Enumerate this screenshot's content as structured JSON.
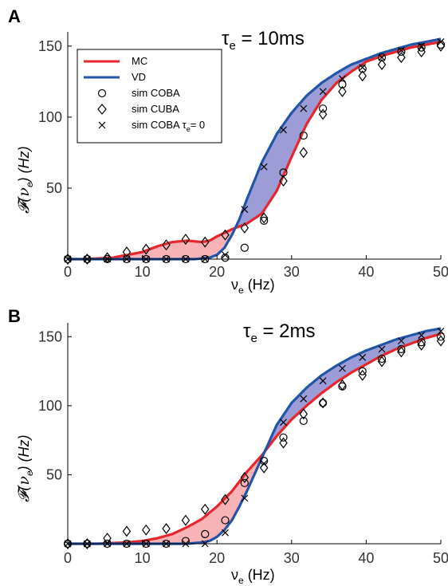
{
  "chart_data": [
    {
      "panel": "A",
      "type": "line",
      "title": "τe = 10ms",
      "title_main": "τ",
      "title_sub": "e",
      "title_rest": " = 10ms",
      "xlabel_main": "ν",
      "xlabel_sub": "e",
      "xlabel_rest": " (Hz)",
      "ylabel_f": "𝓕(ν",
      "ylabel_sub": "e",
      "ylabel_rest": ") (Hz)",
      "xlim": [
        0,
        50
      ],
      "ylim": [
        0,
        160
      ],
      "xticks": [
        0,
        10,
        20,
        30,
        40,
        50
      ],
      "yticks": [
        50,
        100,
        150
      ],
      "grid": false,
      "legend_placement": "top-left",
      "legend": {
        "mc": "MC",
        "vd": "VD",
        "coba": "sim COBA",
        "cuba": "sim CUBA",
        "coba0_main": "sim COBA τ",
        "coba0_sub": "e",
        "coba0_rest": "= 0"
      },
      "colors": {
        "mc": "#e8252b",
        "vd": "#2255a8",
        "mc_fill": "#e8252b",
        "vd_fill": "#3a3ab0"
      },
      "series": [
        {
          "name": "MC",
          "x": [
            0,
            2,
            4,
            6,
            8,
            10,
            12,
            14,
            16,
            18,
            19,
            20,
            22,
            24,
            26,
            28,
            30,
            32,
            34,
            36,
            38,
            40,
            42,
            44,
            46,
            48,
            50
          ],
          "y": [
            0,
            0,
            0.5,
            1,
            3,
            5,
            9,
            12,
            13,
            12,
            13,
            16,
            21,
            25,
            32,
            48,
            72,
            95,
            112,
            124,
            132,
            139,
            143,
            146,
            149,
            151,
            153
          ]
        },
        {
          "name": "VD",
          "x": [
            0,
            2,
            4,
            6,
            8,
            10,
            12,
            14,
            16,
            17,
            18,
            19,
            20,
            21,
            22,
            23,
            24,
            26,
            28,
            30,
            32,
            34,
            36,
            38,
            40,
            42,
            44,
            46,
            48,
            50
          ],
          "y": [
            0,
            0,
            0,
            0,
            0,
            0,
            0,
            0,
            0,
            0,
            0.5,
            1,
            3,
            8,
            17,
            28,
            42,
            68,
            88,
            103,
            115,
            124,
            131,
            137,
            141,
            145,
            148,
            151,
            153,
            155
          ]
        },
        {
          "name": "sim COBA",
          "marker": "circle",
          "x": [
            0,
            2.6,
            5.3,
            7.9,
            10.5,
            13.2,
            15.8,
            18.4,
            21.1,
            23.7,
            26.3,
            28.9,
            31.6,
            34.2,
            36.8,
            39.5,
            42.1,
            44.7,
            47.4,
            50
          ],
          "y": [
            0,
            0,
            0,
            0,
            0,
            0,
            0,
            0,
            1,
            8,
            27,
            61,
            87,
            106,
            123,
            134,
            142,
            146,
            149,
            151
          ]
        },
        {
          "name": "sim CUBA",
          "marker": "diamond",
          "x": [
            0,
            2.6,
            5.3,
            7.9,
            10.5,
            13.2,
            15.8,
            18.4,
            21.1,
            23.7,
            26.3,
            28.9,
            31.6,
            34.2,
            36.8,
            39.5,
            42.1,
            44.7,
            47.4,
            50
          ],
          "y": [
            0,
            0,
            1,
            5,
            7,
            10,
            14,
            12,
            17,
            22,
            29,
            55,
            75,
            102,
            118,
            129,
            137,
            142,
            146,
            150
          ]
        },
        {
          "name": "sim COBA τe = 0",
          "marker": "x",
          "x": [
            0,
            2.6,
            5.3,
            7.9,
            10.5,
            13.2,
            15.8,
            18.4,
            21.1,
            23.7,
            26.3,
            28.9,
            31.6,
            34.2,
            36.8,
            39.5,
            42.1,
            44.7,
            47.4,
            50
          ],
          "y": [
            0,
            0,
            0,
            0,
            0,
            0,
            0,
            0,
            3,
            35,
            65,
            91,
            106,
            118,
            127,
            135,
            142,
            147,
            150,
            153
          ]
        }
      ]
    },
    {
      "panel": "B",
      "type": "line",
      "title": "τe = 2ms",
      "title_main": "τ",
      "title_sub": "e",
      "title_rest": " = 2ms",
      "xlabel_main": "ν",
      "xlabel_sub": "e",
      "xlabel_rest": " (Hz)",
      "ylabel_f": "𝓕(ν",
      "ylabel_sub": "e",
      "ylabel_rest": ") (Hz)",
      "xlim": [
        0,
        50
      ],
      "ylim": [
        0,
        160
      ],
      "xticks": [
        0,
        10,
        20,
        30,
        40,
        50
      ],
      "yticks": [
        50,
        100,
        150
      ],
      "grid": false,
      "colors": {
        "mc": "#e8252b",
        "vd": "#2255a8",
        "mc_fill": "#e8252b",
        "vd_fill": "#3a3ab0"
      },
      "series": [
        {
          "name": "MC",
          "x": [
            0,
            2,
            4,
            6,
            8,
            10,
            12,
            14,
            16,
            18,
            20,
            22,
            24,
            26,
            28,
            30,
            32,
            34,
            36,
            38,
            40,
            42,
            44,
            46,
            48,
            50
          ],
          "y": [
            0,
            0,
            0,
            0.5,
            1,
            2,
            4,
            7,
            12,
            18,
            27,
            38,
            52,
            64,
            78,
            90,
            100,
            109,
            117,
            124,
            130,
            136,
            141,
            145,
            149,
            152
          ]
        },
        {
          "name": "VD",
          "x": [
            0,
            2,
            4,
            6,
            8,
            10,
            12,
            14,
            16,
            17,
            18,
            19,
            20,
            21,
            22,
            23,
            24,
            25,
            26,
            28,
            30,
            32,
            34,
            36,
            38,
            40,
            42,
            44,
            46,
            48,
            50
          ],
          "y": [
            0,
            0,
            0,
            0,
            0,
            0,
            0,
            0,
            0,
            0.5,
            1,
            2,
            5,
            10,
            17,
            27,
            38,
            50,
            62,
            86,
            102,
            113,
            122,
            129,
            135,
            140,
            144,
            148,
            151,
            154,
            156
          ]
        },
        {
          "name": "sim COBA",
          "marker": "circle",
          "x": [
            0,
            2.6,
            5.3,
            7.9,
            10.5,
            13.2,
            15.8,
            18.4,
            21.1,
            23.7,
            26.3,
            28.9,
            31.6,
            34.2,
            36.8,
            39.5,
            42.1,
            44.7,
            47.4,
            50
          ],
          "y": [
            0,
            0,
            0,
            0,
            0,
            0,
            2,
            7,
            17,
            44,
            60,
            77,
            89,
            102,
            114,
            125,
            134,
            141,
            146,
            150
          ]
        },
        {
          "name": "sim CUBA",
          "marker": "diamond",
          "x": [
            0,
            2.6,
            5.3,
            7.9,
            10.5,
            13.2,
            15.8,
            18.4,
            21.1,
            23.7,
            26.3,
            28.9,
            31.6,
            34.2,
            36.8,
            39.5,
            42.1,
            44.7,
            47.4,
            50
          ],
          "y": [
            0,
            0,
            4,
            9,
            10,
            11,
            17,
            25,
            32,
            48,
            55,
            73,
            94,
            102,
            115,
            122,
            132,
            139,
            144,
            147
          ]
        },
        {
          "name": "sim COBA τe = 0",
          "marker": "x",
          "x": [
            0,
            2.6,
            5.3,
            7.9,
            10.5,
            13.2,
            15.8,
            18.4,
            21.1,
            23.7,
            26.3,
            28.9,
            31.6,
            34.2,
            36.8,
            39.5,
            42.1,
            44.7,
            47.4,
            50
          ],
          "y": [
            0,
            0,
            0,
            0,
            0,
            0,
            0,
            0,
            8,
            33,
            58,
            88,
            105,
            118,
            127,
            135,
            141,
            147,
            151,
            154
          ]
        }
      ]
    }
  ]
}
